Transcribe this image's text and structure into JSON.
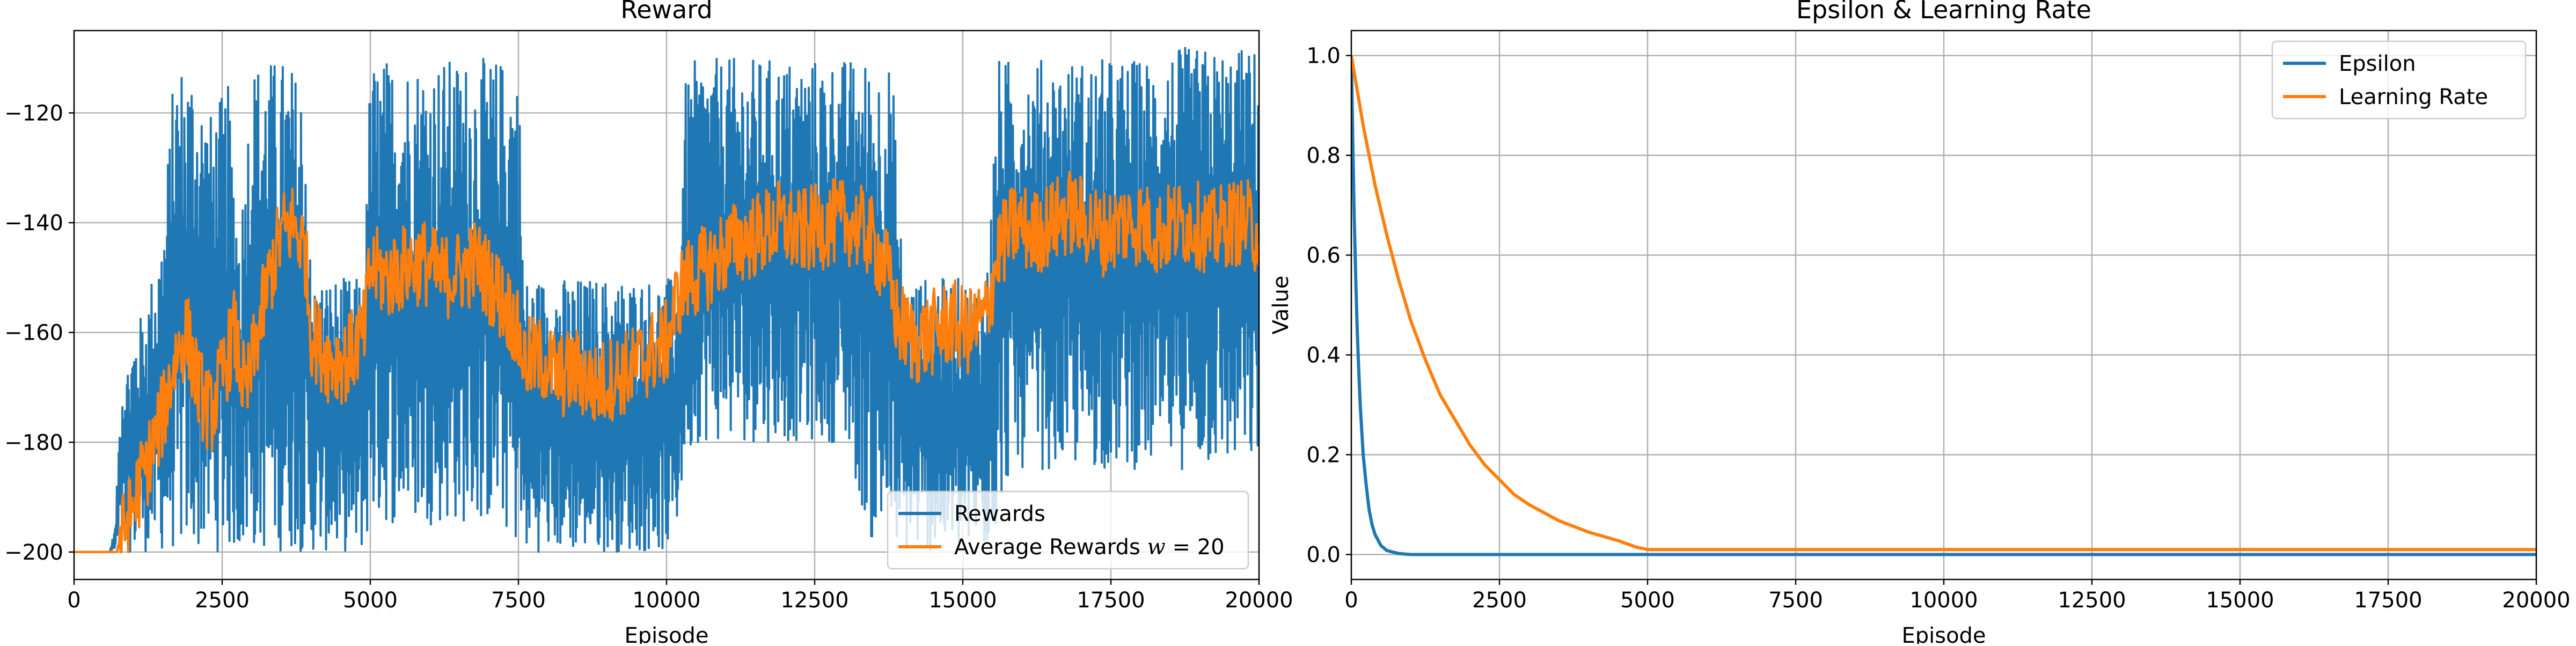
{
  "chart_data": [
    {
      "type": "line",
      "title": "Reward",
      "xlabel": "Episode",
      "ylabel": "",
      "xlim": [
        0,
        20000
      ],
      "ylim": [
        -205,
        -105
      ],
      "xticks": [
        0,
        2500,
        5000,
        7500,
        10000,
        12500,
        15000,
        17500,
        20000
      ],
      "xtick_labels": [
        "0",
        "2500",
        "5000",
        "7500",
        "10000",
        "12500",
        "15000",
        "17500",
        "20000"
      ],
      "yticks": [
        -200,
        -180,
        -160,
        -140,
        -120
      ],
      "ytick_labels": [
        "−200",
        "−180",
        "−160",
        "−140",
        "−120"
      ],
      "grid": true,
      "legend": {
        "position": "lower-right",
        "entries": [
          {
            "label": "Rewards",
            "color": "#1f77b4"
          },
          {
            "label_prefix": "Average Rewards ",
            "label_var": "w",
            "label_suffix": " = 20",
            "color": "#ff7f0e"
          }
        ]
      },
      "series": [
        {
          "name": "Rewards",
          "color": "#1f77b4",
          "style": "noisy-band",
          "x": [
            0,
            600,
            700,
            800,
            900,
            1000,
            1200,
            1500,
            1700,
            2000,
            2300,
            2600,
            2800,
            3000,
            3200,
            3400,
            3600,
            3900,
            4000,
            4300,
            4700,
            4900,
            5000,
            5300,
            5700,
            6000,
            6400,
            6800,
            7200,
            7500,
            7600,
            8000,
            8500,
            9000,
            9500,
            10000,
            10200,
            10300,
            10500,
            11000,
            11500,
            12000,
            12500,
            13000,
            13500,
            13800,
            14000,
            14500,
            15000,
            15400,
            15600,
            15800,
            16000,
            16500,
            17000,
            17500,
            18000,
            18500,
            19000,
            19500,
            20000
          ],
          "low": [
            -200,
            -200,
            -200,
            -200,
            -200,
            -200,
            -200,
            -200,
            -200,
            -200,
            -200,
            -200,
            -200,
            -200,
            -200,
            -200,
            -200,
            -200,
            -200,
            -200,
            -200,
            -200,
            -195,
            -195,
            -195,
            -195,
            -195,
            -195,
            -195,
            -200,
            -200,
            -200,
            -200,
            -200,
            -200,
            -200,
            -195,
            -185,
            -180,
            -180,
            -180,
            -180,
            -180,
            -180,
            -200,
            -200,
            -200,
            -200,
            -200,
            -200,
            -195,
            -185,
            -185,
            -185,
            -185,
            -185,
            -185,
            -185,
            -185,
            -185,
            -185
          ],
          "high": [
            -200,
            -200,
            -195,
            -165,
            -165,
            -160,
            -155,
            -140,
            -110,
            -110,
            -120,
            -115,
            -140,
            -110,
            -110,
            -110,
            -110,
            -115,
            -150,
            -150,
            -150,
            -150,
            -110,
            -110,
            -110,
            -110,
            -110,
            -110,
            -110,
            -110,
            -150,
            -150,
            -150,
            -150,
            -150,
            -150,
            -150,
            -115,
            -110,
            -110,
            -110,
            -110,
            -110,
            -110,
            -110,
            -110,
            -150,
            -150,
            -150,
            -150,
            -110,
            -110,
            -110,
            -110,
            -110,
            -110,
            -110,
            -108,
            -108,
            -108,
            -108
          ]
        },
        {
          "name": "Average Rewards w = 20",
          "color": "#ff7f0e",
          "style": "line",
          "x": [
            0,
            500,
            700,
            900,
            1100,
            1300,
            1500,
            1700,
            1900,
            2100,
            2300,
            2500,
            2700,
            2900,
            3100,
            3300,
            3500,
            3700,
            3900,
            4000,
            4300,
            4600,
            4900,
            5000,
            5300,
            5600,
            5900,
            6200,
            6500,
            6800,
            7100,
            7400,
            7600,
            7900,
            8200,
            8500,
            8800,
            9100,
            9400,
            9700,
            10000,
            10200,
            10400,
            10700,
            11000,
            11300,
            11600,
            11900,
            12200,
            12500,
            12800,
            13100,
            13400,
            13700,
            13900,
            14200,
            14500,
            14800,
            15100,
            15400,
            15600,
            15900,
            16200,
            16500,
            16800,
            17100,
            17400,
            17700,
            18000,
            18300,
            18600,
            18900,
            19200,
            19500,
            19800,
            20000
          ],
          "y": [
            -200,
            -200,
            -200,
            -195,
            -188,
            -182,
            -175,
            -165,
            -160,
            -170,
            -175,
            -168,
            -160,
            -172,
            -160,
            -150,
            -142,
            -140,
            -145,
            -160,
            -165,
            -165,
            -160,
            -148,
            -150,
            -148,
            -147,
            -150,
            -149,
            -147,
            -152,
            -157,
            -165,
            -165,
            -168,
            -167,
            -170,
            -168,
            -167,
            -164,
            -162,
            -153,
            -150,
            -148,
            -145,
            -143,
            -142,
            -140,
            -142,
            -141,
            -140,
            -140,
            -142,
            -148,
            -158,
            -162,
            -160,
            -158,
            -160,
            -157,
            -145,
            -140,
            -142,
            -140,
            -138,
            -140,
            -142,
            -140,
            -140,
            -142,
            -140,
            -140,
            -142,
            -140,
            -140,
            -142
          ]
        }
      ]
    },
    {
      "type": "line",
      "title": "Epsilon & Learning Rate",
      "xlabel": "Episode",
      "ylabel": "Value",
      "xlim": [
        0,
        20000
      ],
      "ylim": [
        -0.05,
        1.05
      ],
      "xticks": [
        0,
        2500,
        5000,
        7500,
        10000,
        12500,
        15000,
        17500,
        20000
      ],
      "xtick_labels": [
        "0",
        "2500",
        "5000",
        "7500",
        "10000",
        "12500",
        "15000",
        "17500",
        "20000"
      ],
      "yticks": [
        0.0,
        0.2,
        0.4,
        0.6,
        0.8,
        1.0
      ],
      "ytick_labels": [
        "0.0",
        "0.2",
        "0.4",
        "0.6",
        "0.8",
        "1.0"
      ],
      "grid": true,
      "legend": {
        "position": "upper-right",
        "entries": [
          {
            "label": "Epsilon",
            "color": "#1f77b4"
          },
          {
            "label": "Learning Rate",
            "color": "#ff7f0e"
          }
        ]
      },
      "series": [
        {
          "name": "Epsilon",
          "color": "#1f77b4",
          "x": [
            0,
            25,
            50,
            75,
            100,
            125,
            150,
            175,
            200,
            250,
            300,
            350,
            400,
            500,
            600,
            800,
            1000,
            2000,
            5000,
            10000,
            15000,
            20000
          ],
          "y": [
            1.0,
            0.82,
            0.67,
            0.55,
            0.45,
            0.37,
            0.3,
            0.25,
            0.2,
            0.14,
            0.09,
            0.06,
            0.04,
            0.018,
            0.008,
            0.002,
            0.0,
            0.0,
            0.0,
            0.0,
            0.0,
            0.0
          ]
        },
        {
          "name": "Learning Rate",
          "color": "#ff7f0e",
          "x": [
            0,
            200,
            400,
            600,
            800,
            1000,
            1250,
            1500,
            1750,
            2000,
            2250,
            2500,
            2750,
            3000,
            3500,
            4000,
            4500,
            4800,
            5000,
            7500,
            10000,
            12500,
            15000,
            17500,
            20000
          ],
          "y": [
            1.0,
            0.86,
            0.74,
            0.64,
            0.55,
            0.47,
            0.39,
            0.32,
            0.27,
            0.22,
            0.18,
            0.15,
            0.12,
            0.1,
            0.068,
            0.045,
            0.028,
            0.015,
            0.01,
            0.01,
            0.01,
            0.01,
            0.01,
            0.01,
            0.01
          ]
        }
      ]
    }
  ]
}
